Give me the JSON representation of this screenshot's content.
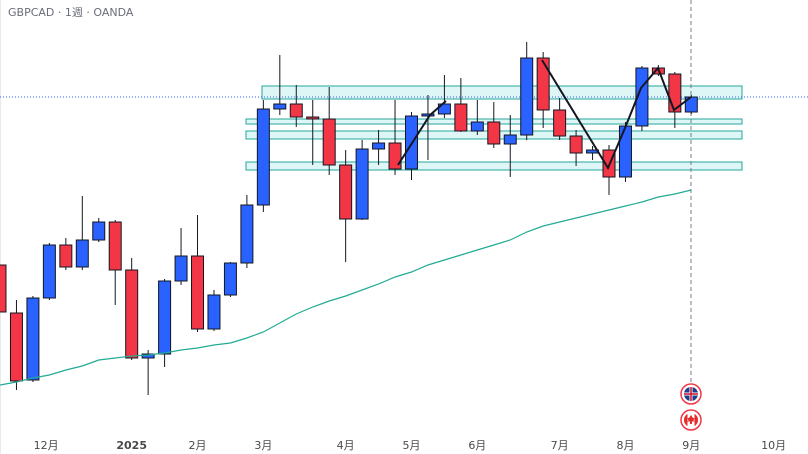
{
  "chart_data": {
    "type": "candlestick",
    "title": "GBPCAD · 1週 · OANDA",
    "x": [
      0,
      1,
      2,
      3,
      4,
      5,
      6,
      7,
      8,
      9,
      10,
      11,
      12,
      13,
      14,
      15,
      16,
      17,
      18,
      19,
      20,
      21,
      22,
      23,
      24,
      25,
      26,
      27,
      28,
      29,
      30,
      31,
      32,
      33,
      34,
      35,
      36,
      37,
      38,
      39,
      40,
      41,
      42
    ],
    "open": [
      1.81,
      1.7908,
      1.764,
      1.7968,
      1.818,
      1.8092,
      1.82,
      1.8272,
      1.808,
      1.7728,
      1.7744,
      1.8036,
      1.8136,
      1.7844,
      1.798,
      1.8108,
      1.834,
      1.8724,
      1.8744,
      1.8692,
      1.8684,
      1.85,
      1.8284,
      1.8564,
      1.8588,
      1.8484,
      1.8696,
      1.8704,
      1.8744,
      1.8636,
      1.8672,
      1.8584,
      1.862,
      1.8928,
      1.872,
      1.8616,
      1.8548,
      1.856,
      1.8452,
      1.8656,
      1.8888,
      1.8864,
      1.8712
    ],
    "high": [
      1.81,
      1.796,
      1.7976,
      1.8188,
      1.8208,
      1.8376,
      1.8288,
      1.828,
      1.8128,
      1.776,
      1.8044,
      1.8248,
      1.83,
      1.8,
      1.8112,
      1.838,
      1.876,
      1.894,
      1.882,
      1.876,
      1.8812,
      1.856,
      1.86,
      1.864,
      1.876,
      1.8712,
      1.878,
      1.886,
      1.8848,
      1.876,
      1.8752,
      1.87,
      1.8992,
      1.8952,
      1.8768,
      1.864,
      1.8576,
      1.858,
      1.8672,
      1.8896,
      1.89,
      1.8872,
      1.878
    ],
    "low": [
      1.7912,
      1.76,
      1.7632,
      1.796,
      1.808,
      1.808,
      1.8192,
      1.794,
      1.772,
      1.758,
      1.7692,
      1.802,
      1.7832,
      1.7836,
      1.7972,
      1.8088,
      1.8312,
      1.87,
      1.8652,
      1.85,
      1.846,
      1.8112,
      1.828,
      1.85,
      1.846,
      1.844,
      1.852,
      1.8688,
      1.8632,
      1.862,
      1.8568,
      1.8452,
      1.86,
      1.8648,
      1.86,
      1.8496,
      1.852,
      1.838,
      1.8432,
      1.8636,
      1.8856,
      1.8648,
      1.8704
    ],
    "close": [
      1.7912,
      1.7636,
      1.7968,
      1.818,
      1.8092,
      1.82,
      1.8272,
      1.808,
      1.7728,
      1.7744,
      1.8036,
      1.8136,
      1.7844,
      1.798,
      1.8108,
      1.834,
      1.8724,
      1.8744,
      1.8692,
      1.8684,
      1.85,
      1.8284,
      1.8564,
      1.8588,
      1.8484,
      1.8696,
      1.8704,
      1.8744,
      1.8636,
      1.8672,
      1.8584,
      1.862,
      1.8928,
      1.872,
      1.8616,
      1.8548,
      1.856,
      1.8452,
      1.8656,
      1.8888,
      1.8864,
      1.8712,
      1.8772
    ],
    "up_color": "#2962ff",
    "down_color": "#f23645",
    "ma": {
      "color": "#22ab94",
      "values": [
        1.762,
        1.7632,
        1.7648,
        1.766,
        1.768,
        1.7696,
        1.772,
        1.7728,
        1.7736,
        1.774,
        1.7748,
        1.776,
        1.7768,
        1.778,
        1.7788,
        1.7808,
        1.7832,
        1.7868,
        1.7904,
        1.7932,
        1.7956,
        1.7976,
        1.8,
        1.8024,
        1.8052,
        1.8072,
        1.81,
        1.812,
        1.814,
        1.816,
        1.818,
        1.82,
        1.8232,
        1.8256,
        1.8272,
        1.8288,
        1.8304,
        1.832,
        1.8336,
        1.8352,
        1.8372,
        1.8384,
        1.84
      ]
    },
    "xlim": [
      0,
      49.09
    ],
    "ylim": [
      1.7408,
      1.916
    ],
    "xticks": [
      {
        "value": 2.8,
        "label": "12月"
      },
      {
        "value": 8,
        "label": "2025"
      },
      {
        "value": 12,
        "label": "2月"
      },
      {
        "value": 16,
        "label": "3月"
      },
      {
        "value": 21,
        "label": "4月"
      },
      {
        "value": 25,
        "label": "5月"
      },
      {
        "value": 29,
        "label": "6月"
      },
      {
        "value": 34,
        "label": "7月"
      },
      {
        "value": 38,
        "label": "8月"
      },
      {
        "value": 42,
        "label": "9月"
      },
      {
        "value": 47,
        "label": "10月"
      }
    ]
  }
}
